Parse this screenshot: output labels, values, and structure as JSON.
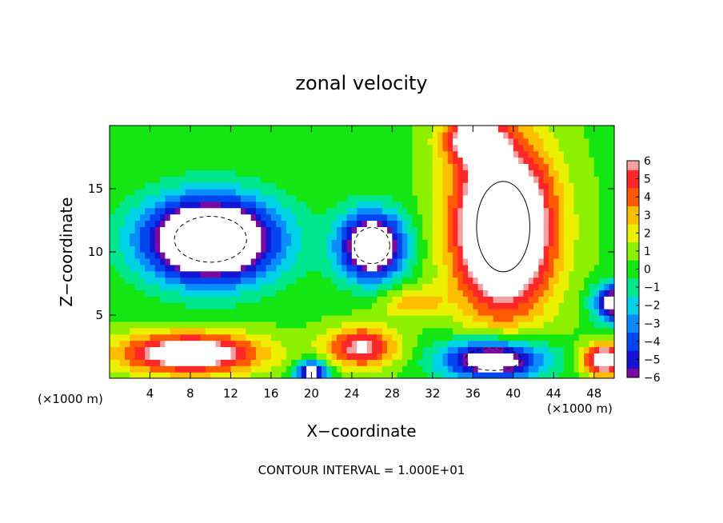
{
  "chart_data": {
    "type": "heatmap",
    "title": "zonal velocity",
    "xlabel": "X−coordinate",
    "ylabel": "Z−coordinate",
    "x_unit_left": "(×1000 m)",
    "x_unit_right": "(×1000 m)",
    "footer": "CONTOUR INTERVAL = 1.000E+01",
    "xlim": [
      0,
      50
    ],
    "ylim": [
      0,
      20
    ],
    "x_ticks": [
      4,
      8,
      12,
      16,
      20,
      24,
      28,
      32,
      36,
      40,
      44,
      48
    ],
    "y_ticks": [
      5,
      10,
      15
    ],
    "colorbar": {
      "vmin": -6,
      "vmax": 6,
      "tick_labels": [
        "6",
        "5",
        "4",
        "3",
        "2",
        "1",
        "0",
        "−1",
        "−2",
        "−3",
        "−4",
        "−5",
        "−6"
      ],
      "tick_values": [
        6,
        5,
        4,
        3,
        2,
        1,
        0,
        -1,
        -2,
        -3,
        -4,
        -5,
        -6
      ],
      "stops": [
        {
          "v": -6,
          "color": "#7a0aa0"
        },
        {
          "v": -5,
          "color": "#1414d2"
        },
        {
          "v": -4,
          "color": "#0046f0"
        },
        {
          "v": -3,
          "color": "#0a8cff"
        },
        {
          "v": -2,
          "color": "#00d2e6"
        },
        {
          "v": -1,
          "color": "#00e68c"
        },
        {
          "v": 0,
          "color": "#14e614"
        },
        {
          "v": 1,
          "color": "#8cf000"
        },
        {
          "v": 2,
          "color": "#ebf000"
        },
        {
          "v": 3,
          "color": "#ffbe00"
        },
        {
          "v": 4,
          "color": "#ff5a00"
        },
        {
          "v": 5,
          "color": "#ff2828"
        },
        {
          "v": 6,
          "color": "#f5a0a0"
        }
      ]
    },
    "features": [
      {
        "name": "negative-core-left",
        "x": 10,
        "z": 11,
        "rx": 6.5,
        "rz": 3.3,
        "amp": -12
      },
      {
        "name": "negative-core-center",
        "x": 26,
        "z": 10.5,
        "rx": 3.2,
        "rz": 2.6,
        "amp": -10
      },
      {
        "name": "negative-core-right-edge",
        "x": 50,
        "z": 6,
        "rx": 2.0,
        "rz": 1.5,
        "amp": -8
      },
      {
        "name": "positive-core-right",
        "x": 39,
        "z": 12,
        "rx": 4.8,
        "rz": 6.5,
        "amp": 12
      },
      {
        "name": "positive-top-right",
        "x": 36,
        "z": 19,
        "rx": 3.0,
        "rz": 2.0,
        "amp": 6
      },
      {
        "name": "positive-bottom-left",
        "x": 8,
        "z": 2,
        "rx": 7.0,
        "rz": 1.6,
        "amp": 8
      },
      {
        "name": "positive-bottom-center",
        "x": 25,
        "z": 2.5,
        "rx": 3.5,
        "rz": 1.6,
        "amp": 6
      },
      {
        "name": "negative-bottom-right",
        "x": 38,
        "z": 1.5,
        "rx": 5.0,
        "rz": 1.6,
        "amp": -9
      },
      {
        "name": "negative-bottom-center",
        "x": 20,
        "z": 0.5,
        "rx": 1.6,
        "rz": 0.9,
        "amp": -8
      },
      {
        "name": "positive-bottom-right-edge",
        "x": 49,
        "z": 1.5,
        "rx": 2.0,
        "rz": 1.2,
        "amp": 8
      },
      {
        "name": "positive-center-column",
        "x": 30,
        "z": 6,
        "rx": 3.0,
        "rz": 1.2,
        "amp": 3
      }
    ]
  }
}
